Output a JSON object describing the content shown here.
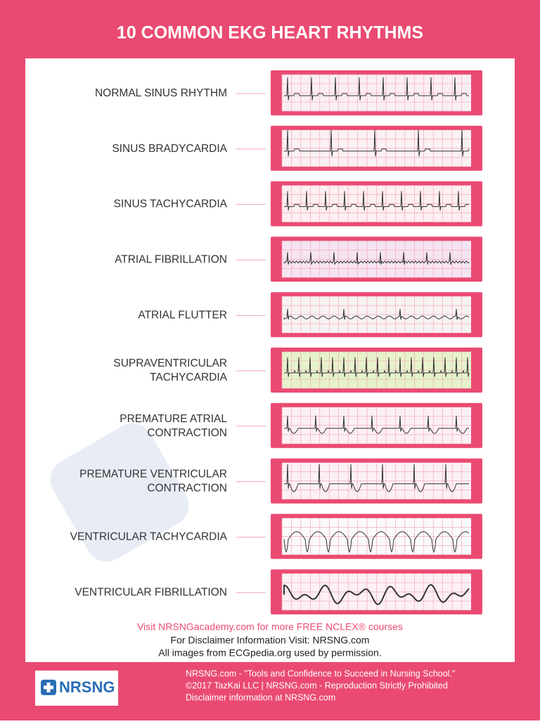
{
  "header": {
    "title": "10 COMMON EKG HEART RHYTHMS"
  },
  "rhythms": [
    {
      "lines": [
        "NORMAL SINUS RHYTHM"
      ]
    },
    {
      "lines": [
        "SINUS BRADYCARDIA"
      ]
    },
    {
      "lines": [
        "SINUS TACHYCARDIA"
      ]
    },
    {
      "lines": [
        "ATRIAL FIBRILLATION"
      ]
    },
    {
      "lines": [
        "ATRIAL FLUTTER"
      ]
    },
    {
      "lines": [
        "SUPRAVENTRICULAR",
        "TACHYCARDIA"
      ]
    },
    {
      "lines": [
        "PREMATURE ATRIAL",
        "CONTRACTION"
      ]
    },
    {
      "lines": [
        "PREMATURE VENTRICULAR",
        "CONTRACTION"
      ]
    },
    {
      "lines": [
        "VENTRICULAR TACHYCARDIA"
      ]
    },
    {
      "lines": [
        "VENTRICULAR FIBRILLATION"
      ]
    }
  ],
  "notes": {
    "link": "Visit NRSNGacademy.com for more FREE NCLEX® courses",
    "disclaimer": "For Disclaimer Information Visit: NRSNG.com",
    "images": "All images from ECGpedia.org used by permission."
  },
  "footer": {
    "logo": "NRSNG",
    "lines": [
      "NRSNG.com - \"Tools and Confidence to Succeed in Nursing School.\"",
      "©2017 TazKai LLC | NRSNG.com - Reproduction Strictly Prohibited",
      "Disclaimer information at NRSNG.com"
    ]
  }
}
